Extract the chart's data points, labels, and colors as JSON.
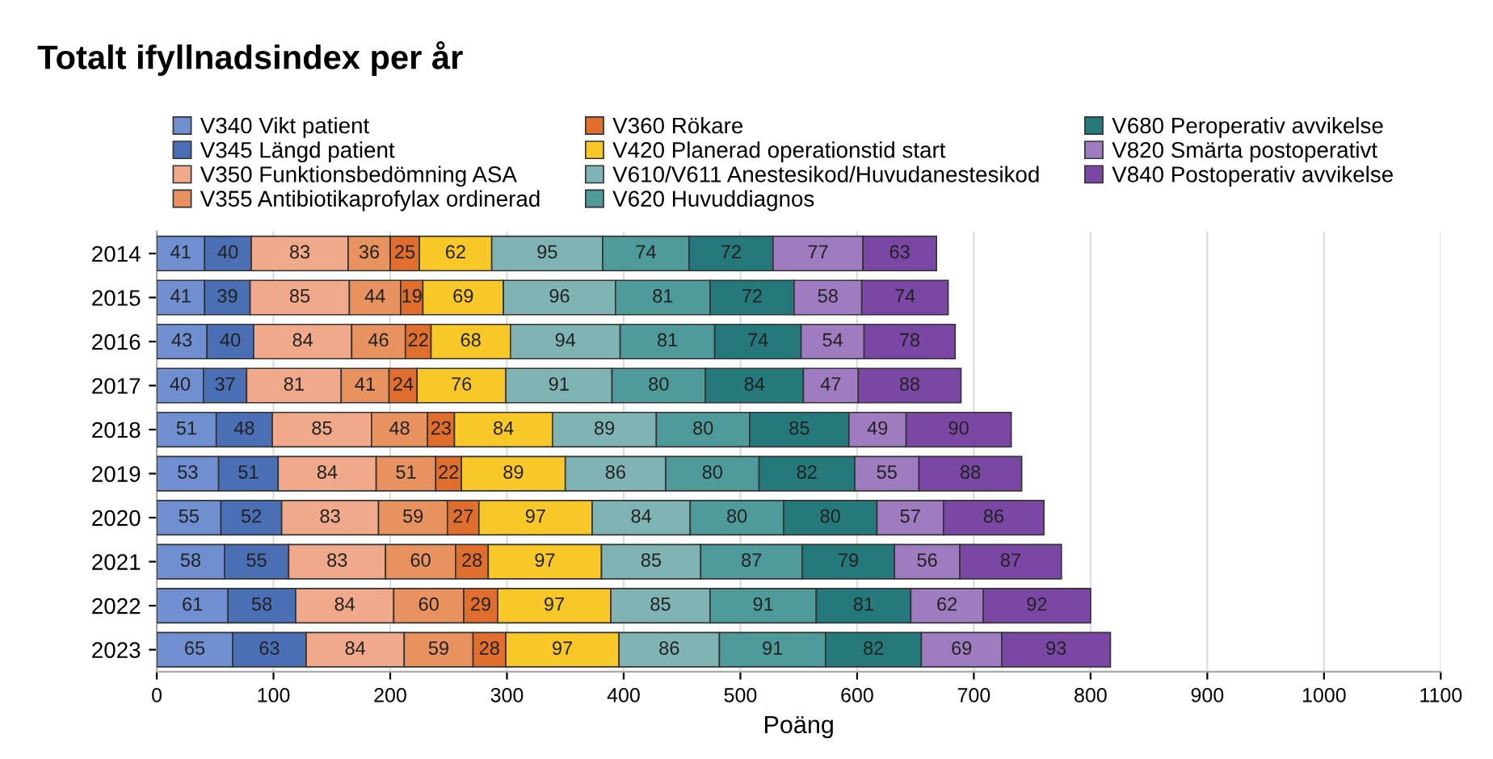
{
  "chart_data": {
    "type": "bar",
    "orientation": "horizontal",
    "stacked": true,
    "title": "Totalt ifyllnadsindex per år",
    "xlabel": "Poäng",
    "categories": [
      "2014",
      "2015",
      "2016",
      "2017",
      "2018",
      "2019",
      "2020",
      "2021",
      "2022",
      "2023"
    ],
    "series": [
      {
        "name": "V340 Vikt patient",
        "color": "#6f8fd0",
        "values": [
          41,
          41,
          43,
          40,
          51,
          53,
          55,
          58,
          61,
          65
        ]
      },
      {
        "name": "V345 Längd patient",
        "color": "#4a6fb5",
        "values": [
          40,
          39,
          40,
          37,
          48,
          51,
          52,
          55,
          58,
          63
        ]
      },
      {
        "name": "V350 Funktionsbedömning ASA",
        "color": "#f0a98a",
        "values": [
          83,
          85,
          84,
          81,
          85,
          84,
          83,
          83,
          84,
          84
        ]
      },
      {
        "name": "V355 Antibiotikaprofylax ordinerad",
        "color": "#e8925f",
        "values": [
          36,
          44,
          46,
          41,
          48,
          51,
          59,
          60,
          60,
          59
        ]
      },
      {
        "name": "V360 Rökare",
        "color": "#e06f2f",
        "values": [
          25,
          19,
          22,
          24,
          23,
          22,
          27,
          28,
          29,
          28
        ]
      },
      {
        "name": "V420 Planerad operationstid start",
        "color": "#f8c828",
        "values": [
          62,
          69,
          68,
          76,
          84,
          89,
          97,
          97,
          97,
          97
        ]
      },
      {
        "name": "V610/V611 Anestesikod/Huvudanestesikod",
        "color": "#80b4b4",
        "values": [
          95,
          96,
          94,
          91,
          89,
          86,
          84,
          85,
          85,
          86
        ]
      },
      {
        "name": "V620 Huvuddiagnos",
        "color": "#4f9a9a",
        "values": [
          74,
          81,
          81,
          80,
          80,
          80,
          80,
          87,
          91,
          91
        ]
      },
      {
        "name": "V680 Peroperativ avvikelse",
        "color": "#25797b",
        "values": [
          72,
          72,
          74,
          84,
          85,
          82,
          80,
          79,
          81,
          82
        ]
      },
      {
        "name": "V820 Smärta postoperativt",
        "color": "#9f7cc0",
        "values": [
          77,
          58,
          54,
          47,
          49,
          55,
          57,
          56,
          62,
          69
        ]
      },
      {
        "name": "V840 Postoperativ avvikelse",
        "color": "#7a48a4",
        "values": [
          63,
          74,
          78,
          88,
          90,
          88,
          86,
          87,
          92,
          93
        ]
      }
    ],
    "xlim": [
      0,
      1100
    ],
    "xticks": [
      0,
      100,
      200,
      300,
      400,
      500,
      600,
      700,
      800,
      900,
      1000,
      1100
    ],
    "grid": "x",
    "legend": "top",
    "data_labels": true
  }
}
